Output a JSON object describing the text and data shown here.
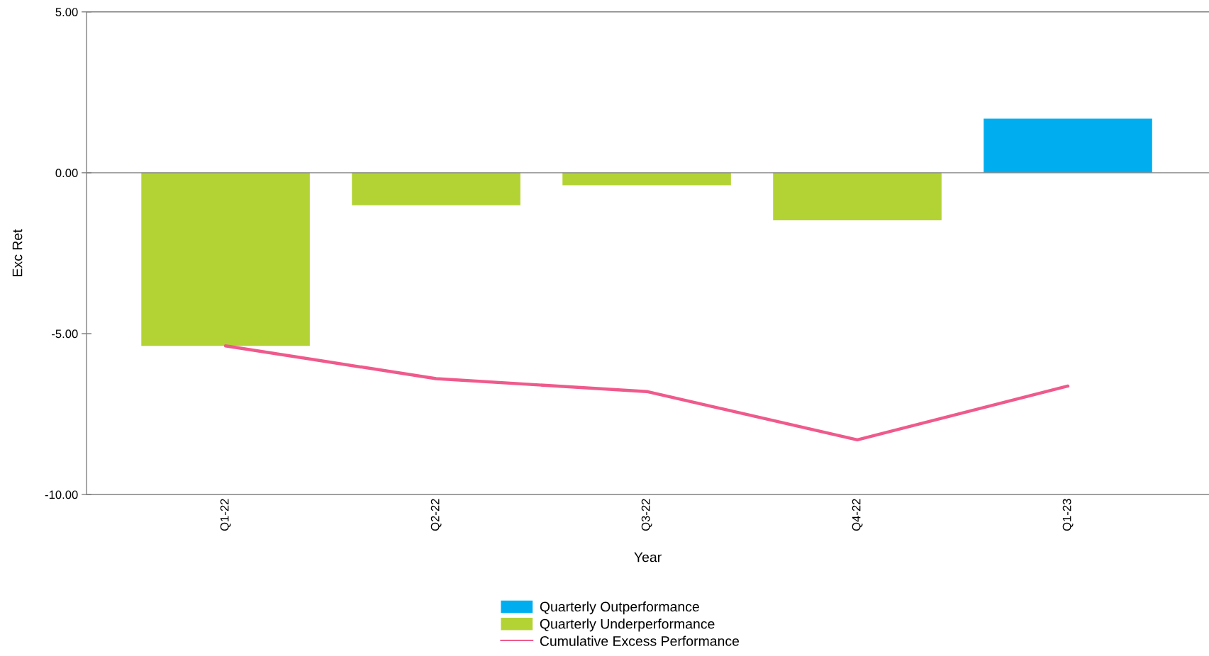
{
  "chart_data": {
    "type": "bar",
    "xlabel": "Year",
    "ylabel": "Exc Ret",
    "categories": [
      "Q1-22",
      "Q2-22",
      "Q3-22",
      "Q4-22",
      "Q1-23"
    ],
    "stacked": true,
    "series": [
      {
        "name": "Quarterly Outperformance",
        "color": "#00aeef",
        "values": [
          null,
          null,
          null,
          null,
          1.68
        ]
      },
      {
        "name": "Quarterly Underperformance",
        "color": "#b3d335",
        "values": [
          -5.38,
          -1.01,
          -0.39,
          -1.48,
          null
        ]
      },
      {
        "name": "Cumulative Excess Performance",
        "type": "line",
        "color": "#ef5a8c",
        "values": [
          -5.38,
          -6.4,
          -6.8,
          -8.3,
          -6.63
        ]
      }
    ],
    "ylim": [
      -10,
      5
    ],
    "yticks": [
      {
        "value": 5,
        "label": "5.00"
      },
      {
        "value": 0,
        "label": "0.00"
      },
      {
        "value": -5,
        "label": "-5.00"
      },
      {
        "value": -10,
        "label": "-10.00"
      }
    ],
    "ref_lines": [
      {
        "axis": "y",
        "value": 0,
        "color": "#808080"
      }
    ],
    "legend": "bottom"
  }
}
